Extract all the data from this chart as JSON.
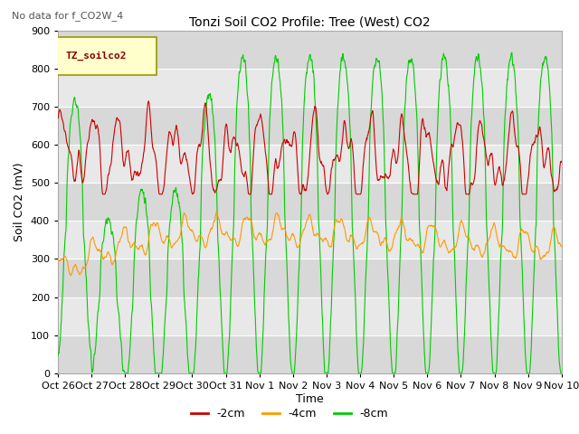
{
  "title": "Tonzi Soil CO2 Profile: Tree (West) CO2",
  "subtitle": "No data for f_CO2W_4",
  "ylabel": "Soil CO2 (mV)",
  "xlabel": "Time",
  "legend_label": "TZ_soilco2",
  "ylim": [
    0,
    900
  ],
  "xlim": [
    0,
    360
  ],
  "xtick_labels": [
    "Oct 26",
    "Oct 27",
    "Oct 28",
    "Oct 29",
    "Oct 30",
    "Oct 31",
    "Nov 1",
    "Nov 2",
    "Nov 3",
    "Nov 4",
    "Nov 5",
    "Nov 6",
    "Nov 7",
    "Nov 8",
    "Nov 9",
    "Nov 10"
  ],
  "xtick_positions": [
    0,
    24,
    48,
    72,
    96,
    120,
    144,
    168,
    192,
    216,
    240,
    264,
    288,
    312,
    336,
    360
  ],
  "line_colors": {
    "2cm": "#cc0000",
    "4cm": "#ff9900",
    "8cm": "#00cc00"
  },
  "bg_light": "#e8e8e8",
  "bg_dark": "#d0d0d0",
  "grid_color": "#ffffff",
  "num_points": 1440
}
